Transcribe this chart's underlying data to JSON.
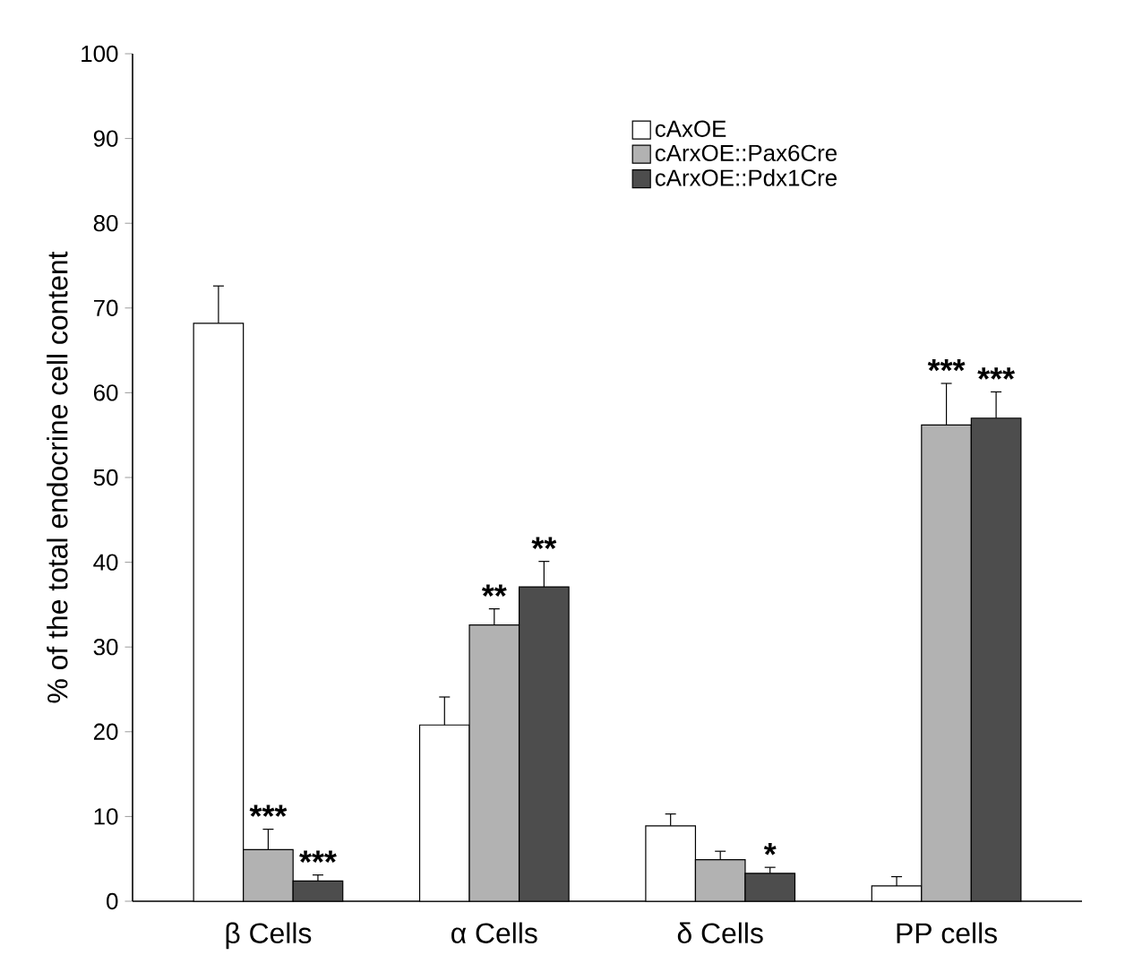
{
  "chart_data": {
    "type": "bar",
    "ylabel": "% of the total endocrine cell content",
    "categories": [
      "β Cells",
      "α Cells",
      "δ Cells",
      "PP cells"
    ],
    "series": [
      {
        "name": "cAxOE",
        "color": "#ffffff",
        "values": [
          68.2,
          20.8,
          8.9,
          1.8
        ],
        "errors": [
          [
            68.2,
            72.6
          ],
          [
            20.8,
            24.1
          ],
          [
            8.9,
            10.3
          ],
          [
            1.8,
            2.9
          ]
        ]
      },
      {
        "name": "cArxOE::Pax6Cre",
        "color": "#b2b2b2",
        "values": [
          6.1,
          32.6,
          4.9,
          56.2
        ],
        "errors": [
          [
            6.1,
            8.5
          ],
          [
            32.6,
            34.5
          ],
          [
            4.9,
            5.9
          ],
          [
            56.2,
            61.1
          ]
        ]
      },
      {
        "name": "cArxOE::Pdx1Cre",
        "color": "#4d4d4d",
        "values": [
          2.4,
          37.1,
          3.3,
          57.0
        ],
        "errors": [
          [
            2.4,
            3.1
          ],
          [
            37.1,
            40.1
          ],
          [
            3.3,
            4.0
          ],
          [
            57.0,
            60.1
          ]
        ]
      }
    ],
    "annotations": [
      {
        "text": "***",
        "y": 6.1
      },
      {
        "text": "***",
        "y": 2.4
      },
      {
        "text": "**",
        "y": 32.6
      },
      {
        "text": "**",
        "y": 37.1
      },
      {
        "text": "*",
        "y": 3.3
      },
      {
        "text": "***",
        "y": 56.2
      },
      {
        "text": "***",
        "y": 57.0
      }
    ],
    "ylim": [
      0,
      100
    ],
    "yticks": [
      0,
      10,
      20,
      30,
      40,
      50,
      60,
      70,
      80,
      90,
      100
    ],
    "legend": "top right",
    "grid": false
  }
}
